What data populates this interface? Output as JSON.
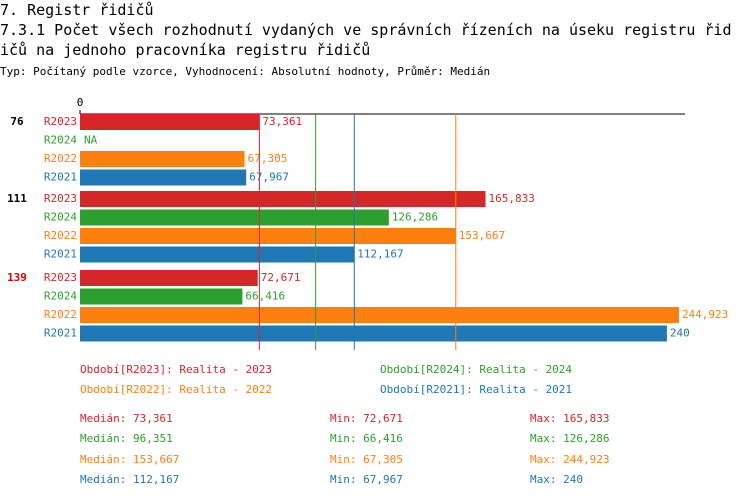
{
  "chart_data": {
    "type": "bar",
    "orientation": "horizontal",
    "section": "7. Registr řidičů",
    "title": "7.3.1 Počet všech rozhodnutí vydaných ve správních řízeních na úseku registru řidičů na jednoho pracovníka registru řidičů",
    "subtitle": "Typ: Počítaný podle vzorce, Vyhodnocení: Absolutní hodnoty, Průměr: Medián",
    "categories": [
      "76",
      "111",
      "139"
    ],
    "category_colors": [
      "#000000",
      "#000000",
      "#dd0000"
    ],
    "xlim": [
      0,
      247.4
    ],
    "xticks": [
      0
    ],
    "series": [
      {
        "name": "R2023",
        "color": "#d62728",
        "values": [
          73.361,
          165.833,
          72.671
        ],
        "value_labels": [
          "73,361",
          "165,833",
          "72,671"
        ],
        "legend_label": "Období[R2023]: Realita - 2023",
        "median": 73.361,
        "median_label": "Medián: 73,361",
        "min_label": "Min: 72,671",
        "max_label": "Max: 165,833"
      },
      {
        "name": "R2024",
        "color": "#2ca02c",
        "values": [
          null,
          126.286,
          66.416
        ],
        "value_labels": [
          "NA",
          "126,286",
          "66,416"
        ],
        "legend_label": "Období[R2024]: Realita - 2024",
        "median": 96.351,
        "median_label": "Medián: 96,351",
        "min_label": "Min: 66,416",
        "max_label": "Max: 126,286"
      },
      {
        "name": "R2022",
        "color": "#ff7f0e",
        "values": [
          67.305,
          153.667,
          244.923
        ],
        "value_labels": [
          "67,305",
          "153,667",
          "244,923"
        ],
        "legend_label": "Období[R2022]: Realita - 2022",
        "median": 153.667,
        "median_label": "Medián: 153,667",
        "min_label": "Min: 67,305",
        "max_label": "Max: 244,923"
      },
      {
        "name": "R2021",
        "color": "#1f77b4",
        "values": [
          67.967,
          112.167,
          240
        ],
        "value_labels": [
          "67,967",
          "112,167",
          "240"
        ],
        "legend_label": "Období[R2021]: Realita - 2021",
        "median": 112.167,
        "median_label": "Medián: 112,167",
        "min_label": "Min: 67,967",
        "max_label": "Max: 240"
      }
    ]
  }
}
